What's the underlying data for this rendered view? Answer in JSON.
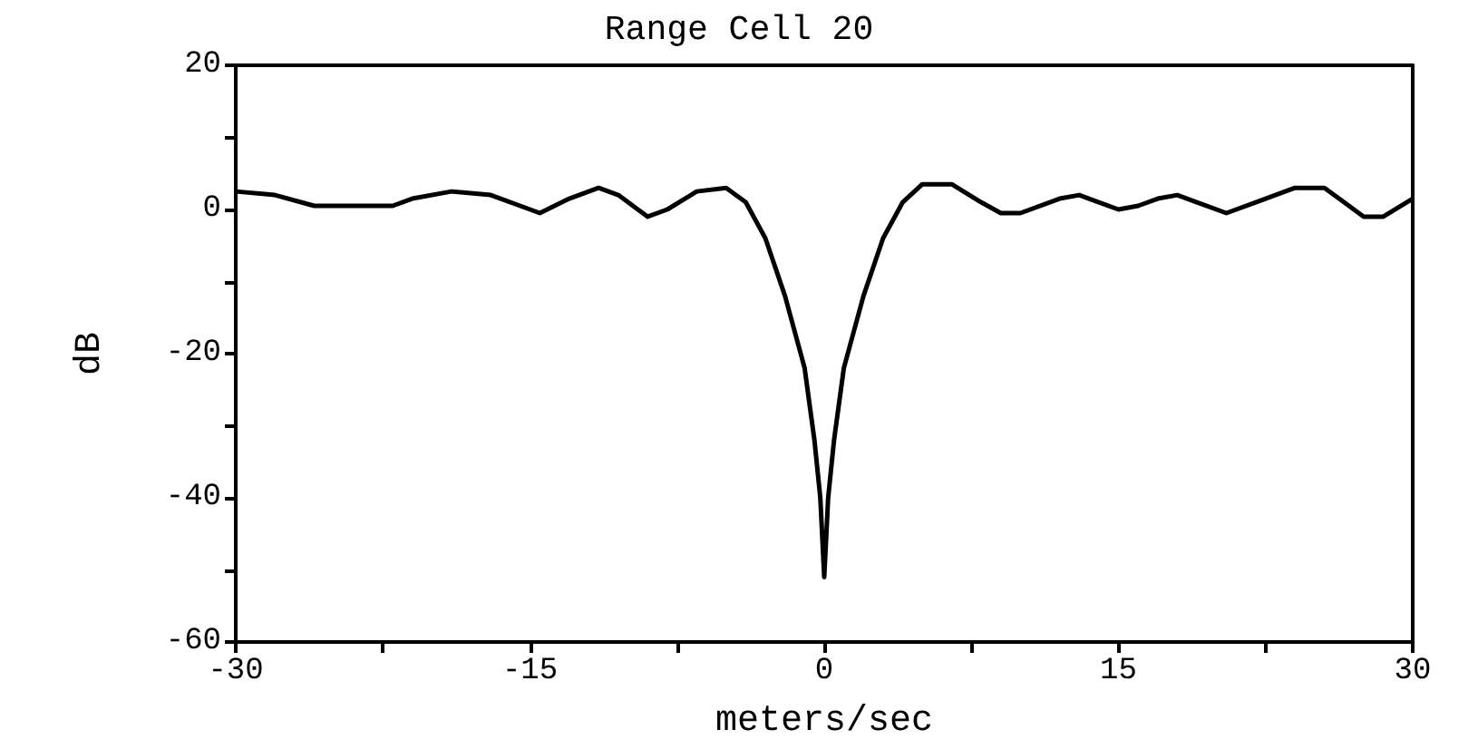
{
  "chart_data": {
    "type": "line",
    "title": "Range Cell 20",
    "xlabel": "meters/sec",
    "ylabel": "dB",
    "x": [
      -30,
      -28,
      -26,
      -24,
      -22,
      -21,
      -19,
      -17,
      -15,
      -14.5,
      -13,
      -11.5,
      -10.5,
      -9,
      -8,
      -6.5,
      -5,
      -4,
      -3,
      -2,
      -1,
      -0.5,
      -0.2,
      0,
      0.2,
      0.5,
      1,
      2,
      3,
      4,
      5,
      6.5,
      8,
      9,
      10,
      12,
      13,
      14,
      15,
      16,
      17,
      18,
      19,
      20.5,
      22,
      24,
      25.5,
      26.5,
      27.5,
      28.5,
      30
    ],
    "series": [
      {
        "color": "#000000",
        "values": [
          2.5,
          2,
          0.5,
          0.5,
          0.5,
          1.5,
          2.5,
          2,
          0,
          -0.5,
          1.5,
          3,
          2,
          -1,
          0,
          2.5,
          3,
          1,
          -4,
          -12,
          -22,
          -32,
          -40,
          -51,
          -40,
          -32,
          -22,
          -12,
          -4,
          1,
          3.5,
          3.5,
          1,
          -0.5,
          -0.5,
          1.5,
          2,
          1,
          0,
          0.5,
          1.5,
          2,
          1,
          -0.5,
          1,
          3,
          3,
          1,
          -1,
          -1,
          1.5
        ]
      }
    ],
    "xlim": [
      -30,
      30
    ],
    "xticks": [
      -30,
      {
        "value": -22.5,
        "label": null
      },
      -15,
      {
        "value": -7.5,
        "label": null
      },
      0,
      {
        "value": 7.5,
        "label": null
      },
      15,
      {
        "value": 22.5,
        "label": null
      },
      30
    ],
    "ylim": [
      -60,
      20
    ],
    "yticks": [
      -60,
      {
        "value": -50,
        "label": null
      },
      -40,
      {
        "value": -30,
        "label": null
      },
      -20,
      {
        "value": -10,
        "label": null
      },
      0,
      {
        "value": 10,
        "label": null
      },
      20
    ],
    "grid": false,
    "marker": "none",
    "line_style": "solid"
  }
}
